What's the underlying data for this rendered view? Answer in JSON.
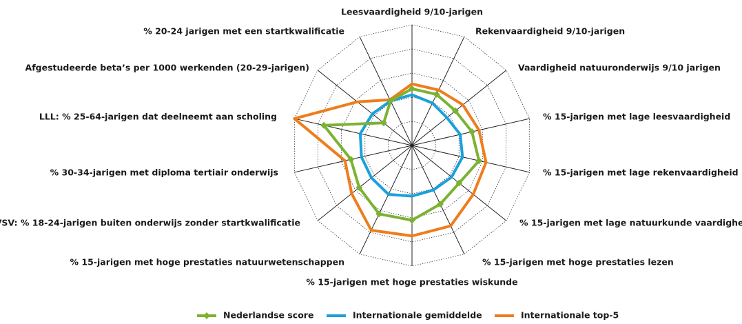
{
  "chart_data": {
    "type": "radar",
    "categories": [
      "Leesvaardigheid 9/10-jarigen",
      "Rekenvaardigheid 9/10-jarigen",
      "Vaardigheid natuuronderwijs 9/10 jarigen",
      "% 15-jarigen met lage leesvaardigheid",
      "% 15-jarigen met lage rekenvaardigheid",
      "% 15-jarigen met lage natuurkunde vaardigheid",
      "% 15-jarigen met hoge prestaties lezen",
      "% 15-jarigen met hoge prestaties wiskunde",
      "% 15-jarigen met hoge prestaties natuurwetenschappen",
      "VSV: % 18-24-jarigen buiten onderwijs zonder startkwalificatie",
      "% 30-34-jarigen met diploma tertiair onderwijs",
      "LLL: % 25-64-jarigen dat deelneemt aan scholing",
      "Afgestudeerde beta’s per 1000 werkenden (20-29-jarigen)",
      "% 20-24 jarigen met een startkwalificatie"
    ],
    "series": [
      {
        "name": "Nederlandse score",
        "color": "#7cb232",
        "values": [
          47,
          47,
          46,
          51,
          57,
          50,
          54,
          62,
          63,
          56,
          52,
          75,
          30,
          41
        ]
      },
      {
        "name": "Internationale gemiddelde",
        "color": "#1aa0dc",
        "values": [
          42,
          39,
          37,
          41,
          43,
          42,
          41,
          42,
          45,
          43,
          43,
          44,
          42,
          41
        ]
      },
      {
        "name": "Internationale top-5",
        "color": "#ee7d1b",
        "values": [
          51,
          51,
          54,
          57,
          63,
          65,
          74,
          75,
          78,
          64,
          57,
          100,
          58,
          42
        ]
      }
    ],
    "ylim": [
      0,
      100
    ],
    "yticks": [
      20,
      40,
      60,
      80,
      100
    ],
    "grid": true
  }
}
